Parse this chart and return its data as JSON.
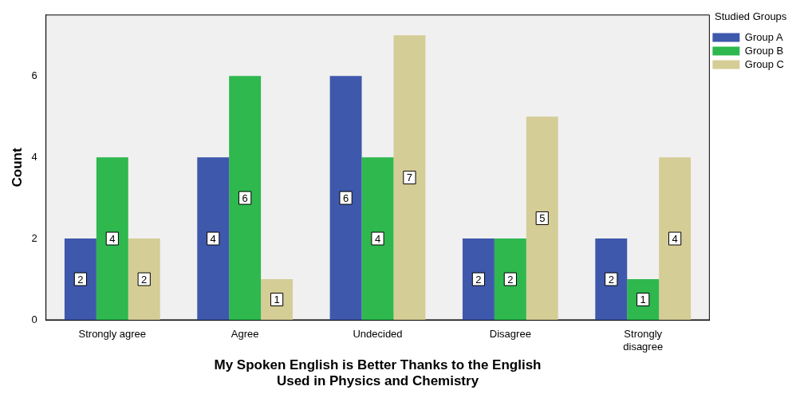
{
  "chart_data": {
    "type": "bar",
    "xlabel": "My Spoken English is Better Thanks to the English Used in Physics and Chemistry",
    "ylabel": "Count",
    "legend_title": "Studied Groups",
    "categories": [
      "Strongly agree",
      "Agree",
      "Undecided",
      "Disagree",
      "Strongly disagree"
    ],
    "series": [
      {
        "name": "Group A",
        "color": "#3e58ac",
        "values": [
          2,
          4,
          6,
          2,
          2
        ]
      },
      {
        "name": "Group B",
        "color": "#2eb84e",
        "values": [
          4,
          6,
          4,
          2,
          1
        ]
      },
      {
        "name": "Group C",
        "color": "#d5cd96",
        "values": [
          2,
          1,
          7,
          5,
          4
        ]
      }
    ],
    "ylim": [
      0,
      7.5
    ],
    "yticks": [
      0,
      2,
      4,
      6
    ],
    "data_labels": true,
    "legend": "top right"
  }
}
